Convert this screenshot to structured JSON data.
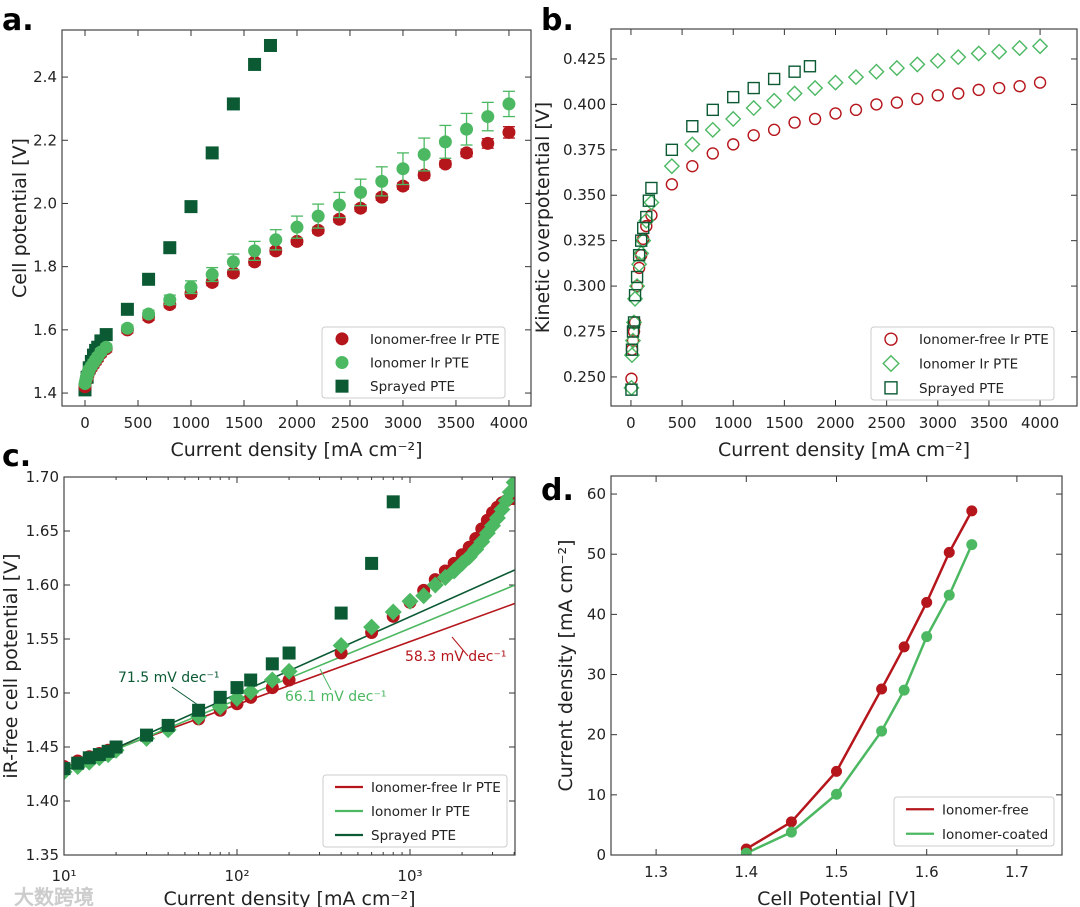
{
  "watermark": "大数跨境",
  "colors": {
    "red": "#b5161c",
    "light_green": "#4cb862",
    "dark_green": "#0b5a34"
  },
  "chart_data": [
    {
      "panel_label": "a.",
      "type": "scatter",
      "xlabel": "Current density [mA cm⁻²]",
      "ylabel": "Cell potential [V]",
      "xlim": [
        -217,
        4208
      ],
      "ylim": [
        1.359,
        2.549
      ],
      "xticks": [
        0,
        500,
        1000,
        1500,
        2000,
        2500,
        3000,
        3500,
        4000
      ],
      "xticklabels": [
        "0",
        "500",
        "1000",
        "1500",
        "2000",
        "2500",
        "3000",
        "3500",
        "4000"
      ],
      "yticks": [
        1.4,
        1.6,
        1.8,
        2.0,
        2.2,
        2.4
      ],
      "yticklabels": [
        "1.4",
        "1.6",
        "1.8",
        "2.0",
        "2.2",
        "2.4"
      ],
      "legend_position": "bottom-right",
      "series": [
        {
          "name": "Ionomer-free Ir PTE",
          "marker": "circle",
          "fill": true,
          "color": "red",
          "x": [
            0,
            10,
            20,
            30,
            40,
            60,
            80,
            100,
            120,
            150,
            200,
            400,
            600,
            800,
            1000,
            1200,
            1400,
            1600,
            1800,
            2000,
            2200,
            2400,
            2600,
            2800,
            3000,
            3200,
            3400,
            3600,
            3800,
            4000
          ],
          "y": [
            1.42,
            1.44,
            1.45,
            1.46,
            1.47,
            1.48,
            1.49,
            1.5,
            1.51,
            1.525,
            1.54,
            1.6,
            1.64,
            1.68,
            1.715,
            1.75,
            1.78,
            1.815,
            1.85,
            1.88,
            1.915,
            1.95,
            1.985,
            2.02,
            2.055,
            2.09,
            2.125,
            2.16,
            2.19,
            2.225
          ],
          "err": [
            0.01,
            0.01,
            0.01,
            0.01,
            0.01,
            0.01,
            0.01,
            0.01,
            0.01,
            0.01,
            0.01,
            0.01,
            0.01,
            0.01,
            0.01,
            0.01,
            0.01,
            0.01,
            0.01,
            0.01,
            0.01,
            0.01,
            0.01,
            0.01,
            0.01,
            0.01,
            0.01,
            0.012,
            0.015,
            0.018
          ]
        },
        {
          "name": "Ionomer Ir PTE",
          "marker": "circle",
          "fill": true,
          "color": "light_green",
          "x": [
            0,
            10,
            20,
            30,
            40,
            60,
            80,
            100,
            120,
            150,
            200,
            400,
            600,
            800,
            1000,
            1200,
            1400,
            1600,
            1800,
            2000,
            2200,
            2400,
            2600,
            2800,
            3000,
            3200,
            3400,
            3600,
            3800,
            4000
          ],
          "y": [
            1.43,
            1.445,
            1.455,
            1.465,
            1.475,
            1.485,
            1.495,
            1.505,
            1.515,
            1.53,
            1.545,
            1.605,
            1.65,
            1.695,
            1.735,
            1.775,
            1.815,
            1.85,
            1.885,
            1.925,
            1.96,
            1.995,
            2.035,
            2.07,
            2.11,
            2.155,
            2.195,
            2.235,
            2.275,
            2.315
          ],
          "err": [
            0.01,
            0.01,
            0.01,
            0.01,
            0.01,
            0.01,
            0.01,
            0.01,
            0.01,
            0.01,
            0.01,
            0.01,
            0.012,
            0.015,
            0.02,
            0.022,
            0.025,
            0.03,
            0.032,
            0.035,
            0.038,
            0.04,
            0.042,
            0.046,
            0.05,
            0.052,
            0.052,
            0.05,
            0.045,
            0.04
          ]
        },
        {
          "name": "Sprayed PTE",
          "marker": "square",
          "fill": true,
          "color": "dark_green",
          "x": [
            0,
            20,
            40,
            60,
            80,
            100,
            120,
            150,
            200,
            400,
            600,
            800,
            1000,
            1200,
            1400,
            1600,
            1750
          ],
          "y": [
            1.41,
            1.45,
            1.48,
            1.5,
            1.52,
            1.535,
            1.545,
            1.565,
            1.585,
            1.665,
            1.76,
            1.86,
            1.99,
            2.16,
            2.315,
            2.44,
            2.5
          ]
        }
      ]
    },
    {
      "panel_label": "b.",
      "type": "scatter",
      "xlabel": "Current density [mA cm⁻²]",
      "ylabel": "Kinetic overpotential [V]",
      "xlim": [
        -195,
        4361
      ],
      "ylim": [
        0.234,
        0.4415
      ],
      "xticks": [
        0,
        500,
        1000,
        1500,
        2000,
        2500,
        3000,
        3500,
        4000
      ],
      "xticklabels": [
        "0",
        "500",
        "1000",
        "1500",
        "2000",
        "2500",
        "3000",
        "3500",
        "4000"
      ],
      "yticks": [
        0.25,
        0.275,
        0.3,
        0.325,
        0.35,
        0.375,
        0.4,
        0.425
      ],
      "yticklabels": [
        "0.250",
        "0.275",
        "0.300",
        "0.325",
        "0.350",
        "0.375",
        "0.400",
        "0.425"
      ],
      "legend_position": "bottom-right",
      "series": [
        {
          "name": "Ionomer-free Ir PTE",
          "marker": "circle",
          "fill": false,
          "color": "red",
          "x": [
            5,
            10,
            20,
            30,
            40,
            60,
            80,
            100,
            120,
            150,
            200,
            400,
            600,
            800,
            1000,
            1200,
            1400,
            1600,
            1800,
            2000,
            2200,
            2400,
            2600,
            2800,
            3000,
            3200,
            3400,
            3600,
            3800,
            4000
          ],
          "y": [
            0.249,
            0.265,
            0.27,
            0.275,
            0.28,
            0.3,
            0.31,
            0.317,
            0.326,
            0.333,
            0.339,
            0.356,
            0.366,
            0.373,
            0.378,
            0.383,
            0.386,
            0.39,
            0.392,
            0.395,
            0.397,
            0.4,
            0.401,
            0.403,
            0.405,
            0.406,
            0.408,
            0.409,
            0.41,
            0.412
          ]
        },
        {
          "name": "Ionomer Ir PTE",
          "marker": "diamond",
          "fill": false,
          "color": "light_green",
          "x": [
            5,
            10,
            20,
            30,
            40,
            60,
            80,
            100,
            120,
            150,
            200,
            400,
            600,
            800,
            1000,
            1200,
            1400,
            1600,
            1800,
            2000,
            2200,
            2400,
            2600,
            2800,
            3000,
            3200,
            3400,
            3600,
            3800,
            4000
          ],
          "y": [
            0.244,
            0.262,
            0.27,
            0.28,
            0.293,
            0.3,
            0.312,
            0.318,
            0.325,
            0.336,
            0.346,
            0.366,
            0.378,
            0.386,
            0.392,
            0.398,
            0.402,
            0.406,
            0.409,
            0.412,
            0.415,
            0.418,
            0.42,
            0.422,
            0.424,
            0.426,
            0.428,
            0.429,
            0.431,
            0.432
          ]
        },
        {
          "name": "Sprayed PTE",
          "marker": "square",
          "fill": false,
          "color": "dark_green",
          "x": [
            5,
            10,
            20,
            30,
            40,
            60,
            80,
            100,
            120,
            150,
            175,
            200,
            400,
            600,
            800,
            1000,
            1200,
            1400,
            1600,
            1750
          ],
          "y": [
            0.243,
            0.265,
            0.275,
            0.28,
            0.295,
            0.305,
            0.317,
            0.325,
            0.332,
            0.338,
            0.347,
            0.354,
            0.375,
            0.388,
            0.397,
            0.404,
            0.409,
            0.414,
            0.418,
            0.421
          ]
        }
      ]
    },
    {
      "panel_label": "c.",
      "type": "scatter",
      "xscale": "log",
      "xlabel": "Current density [mA cm⁻²]",
      "ylabel": "iR-free cell potential [V]",
      "xlim": [
        10,
        4046
      ],
      "ylim": [
        1.35,
        1.7
      ],
      "xticks": [
        10,
        100,
        1000
      ],
      "xticklabels": [
        "10¹",
        "10²",
        "10³"
      ],
      "yticks": [
        1.35,
        1.4,
        1.45,
        1.5,
        1.55,
        1.6,
        1.65,
        1.7
      ],
      "yticklabels": [
        "1.35",
        "1.40",
        "1.45",
        "1.50",
        "1.55",
        "1.60",
        "1.65",
        "1.70"
      ],
      "legend_position": "bottom-right",
      "series": [
        {
          "name": "Ionomer-free Ir PTE",
          "marker": "circle",
          "fill": true,
          "color": "red",
          "x": [
            10,
            12,
            14,
            16,
            18,
            20,
            30,
            40,
            60,
            80,
            100,
            120,
            160,
            200,
            400,
            600,
            800,
            1000,
            1200,
            1400,
            1600,
            1800,
            2000,
            2200,
            2400,
            2600,
            2800,
            3000,
            3200,
            3400,
            3600,
            3800,
            4000
          ],
          "y": [
            1.432,
            1.437,
            1.441,
            1.444,
            1.447,
            1.45,
            1.46,
            1.467,
            1.476,
            1.484,
            1.49,
            1.496,
            1.505,
            1.512,
            1.537,
            1.556,
            1.571,
            1.584,
            1.595,
            1.605,
            1.613,
            1.62,
            1.628,
            1.635,
            1.643,
            1.652,
            1.66,
            1.667,
            1.672,
            1.676,
            1.678,
            1.68,
            1.68
          ],
          "fit": {
            "slope_mV_per_dec": 58.3,
            "intercept_at_10": 1.431,
            "label": "58.3 mV dec⁻¹"
          }
        },
        {
          "name": "Ionomer Ir PTE",
          "marker": "diamond",
          "fill": true,
          "color": "light_green",
          "x": [
            10,
            12,
            14,
            16,
            18,
            20,
            30,
            40,
            60,
            80,
            100,
            120,
            160,
            200,
            400,
            600,
            800,
            1000,
            1200,
            1400,
            1600,
            1800,
            2000,
            2200,
            2400,
            2600,
            2800,
            3000,
            3200,
            3400,
            3600,
            3800,
            4000
          ],
          "y": [
            1.427,
            1.432,
            1.436,
            1.44,
            1.443,
            1.447,
            1.458,
            1.466,
            1.478,
            1.487,
            1.495,
            1.501,
            1.512,
            1.52,
            1.544,
            1.561,
            1.575,
            1.585,
            1.59,
            1.6,
            1.607,
            1.613,
            1.62,
            1.626,
            1.633,
            1.64,
            1.648,
            1.655,
            1.662,
            1.67,
            1.678,
            1.686,
            1.695
          ],
          "fit": {
            "slope_mV_per_dec": 66.1,
            "intercept_at_10": 1.4277,
            "label": "66.1 mV dec⁻¹"
          }
        },
        {
          "name": "Sprayed PTE",
          "marker": "square",
          "fill": true,
          "color": "dark_green",
          "x": [
            10,
            12,
            14,
            16,
            18,
            20,
            30,
            40,
            60,
            80,
            100,
            120,
            160,
            200,
            400,
            600,
            800
          ],
          "y": [
            1.43,
            1.435,
            1.44,
            1.443,
            1.446,
            1.45,
            1.461,
            1.47,
            1.484,
            1.496,
            1.505,
            1.512,
            1.527,
            1.537,
            1.574,
            1.62,
            1.677
          ],
          "fit": {
            "slope_mV_per_dec": 71.5,
            "intercept_at_10": 1.4276,
            "label": "71.5 mV dec⁻¹"
          }
        }
      ]
    },
    {
      "panel_label": "d.",
      "type": "line",
      "xlabel": "Cell Potential [V]",
      "ylabel": "Current density [mA cm⁻²]",
      "xlim": [
        1.25,
        1.75
      ],
      "ylim": [
        0,
        63
      ],
      "xticks": [
        1.3,
        1.4,
        1.5,
        1.6,
        1.7
      ],
      "xticklabels": [
        "1.3",
        "1.4",
        "1.5",
        "1.6",
        "1.7"
      ],
      "yticks": [
        0,
        10,
        20,
        30,
        40,
        50,
        60
      ],
      "yticklabels": [
        "0",
        "10",
        "20",
        "30",
        "40",
        "50",
        "60"
      ],
      "legend_position": "bottom-right",
      "series": [
        {
          "name": "Ionomer-free",
          "marker": "circle",
          "fill": true,
          "color": "red",
          "x": [
            1.4,
            1.45,
            1.5,
            1.55,
            1.575,
            1.6,
            1.625,
            1.65
          ],
          "y": [
            1.0,
            5.5,
            13.9,
            27.6,
            34.6,
            42.0,
            50.3,
            57.2
          ]
        },
        {
          "name": "Ionomer-coated",
          "marker": "circle",
          "fill": true,
          "color": "light_green",
          "x": [
            1.4,
            1.45,
            1.5,
            1.55,
            1.575,
            1.6,
            1.625,
            1.65
          ],
          "y": [
            0.3,
            3.8,
            10.1,
            20.6,
            27.4,
            36.3,
            43.2,
            51.6
          ]
        }
      ]
    }
  ]
}
